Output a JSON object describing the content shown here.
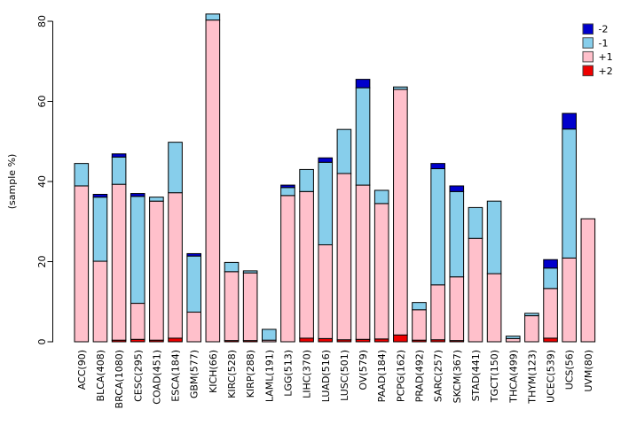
{
  "figure": {
    "ylabel": "(sample %)"
  },
  "legend": {
    "position": "top-right",
    "entries": [
      {
        "label": "-2",
        "color": "#0000CC"
      },
      {
        "label": "-1",
        "color": "#87CEEB"
      },
      {
        "label": "+1",
        "color": "#FFC0CB"
      },
      {
        "label": "+2",
        "color": "#EE0000"
      }
    ]
  },
  "chart_data": {
    "type": "bar",
    "stacked": true,
    "orientation": "vertical",
    "title": "",
    "xlabel": "",
    "ylabel": "(sample %)",
    "ylim": [
      0,
      80
    ],
    "yticks": [
      0,
      20,
      40,
      60,
      80
    ],
    "grid": false,
    "legend_position": "top-right",
    "categories": [
      "ACC(90)",
      "BLCA(408)",
      "BRCA(1080)",
      "CESC(295)",
      "COAD(451)",
      "ESCA(184)",
      "GBM(577)",
      "KICH(66)",
      "KIRC(528)",
      "KIRP(288)",
      "LAML(191)",
      "LGG(513)",
      "LIHC(370)",
      "LUAD(516)",
      "LUSC(501)",
      "OV(579)",
      "PAAD(184)",
      "PCPG(162)",
      "PRAD(492)",
      "SARC(257)",
      "SKCM(367)",
      "STAD(441)",
      "TGCT(150)",
      "THCA(499)",
      "THYM(123)",
      "UCEC(539)",
      "UCS(56)",
      "UVM(80)"
    ],
    "stack_order_bottom_to_top": [
      "+2",
      "+1",
      "-1",
      "-2"
    ],
    "series": [
      {
        "name": "+2",
        "color": "#EE0000",
        "values": [
          0,
          0,
          0.4,
          0.6,
          0.4,
          0.9,
          0,
          0,
          0.3,
          0.3,
          0,
          0,
          0.9,
          0.8,
          0.5,
          0.6,
          0.7,
          1.7,
          0.4,
          0.5,
          0.3,
          0,
          0,
          0,
          0,
          0.9,
          0,
          0
        ]
      },
      {
        "name": "+1",
        "color": "#FFC0CB",
        "values": [
          38.9,
          20.1,
          38.9,
          9.0,
          34.7,
          36.3,
          7.4,
          80.3,
          17.2,
          16.9,
          0.4,
          36.5,
          36.6,
          23.4,
          41.5,
          38.5,
          33.8,
          61.3,
          7.6,
          13.7,
          15.9,
          25.8,
          17.0,
          0.8,
          6.5,
          12.4,
          20.9,
          30.7
        ]
      },
      {
        "name": "-1",
        "color": "#87CEEB",
        "values": [
          5.6,
          16.0,
          6.8,
          26.7,
          1.0,
          12.6,
          14.0,
          1.5,
          2.3,
          0.5,
          2.7,
          2.0,
          5.5,
          20.6,
          11.0,
          24.3,
          3.3,
          0.6,
          1.8,
          29.0,
          21.3,
          7.7,
          18.1,
          0.6,
          0.6,
          5.1,
          32.2,
          0
        ]
      },
      {
        "name": "-2",
        "color": "#0000CC",
        "values": [
          0,
          0.7,
          0.8,
          0.7,
          0,
          0,
          0.6,
          0,
          0,
          0,
          0,
          0.6,
          0,
          1.1,
          0,
          2.1,
          0,
          0,
          0,
          1.3,
          1.4,
          0,
          0,
          0,
          0,
          2.1,
          3.9,
          0
        ]
      }
    ],
    "totals": [
      44.5,
      36.8,
      46.9,
      37.0,
      36.1,
      49.8,
      22.0,
      81.8,
      19.8,
      17.7,
      3.1,
      39.1,
      43.0,
      45.9,
      53.0,
      65.5,
      37.8,
      63.6,
      9.8,
      44.5,
      38.9,
      33.5,
      35.1,
      1.4,
      7.1,
      20.5,
      57.0,
      30.7
    ]
  }
}
